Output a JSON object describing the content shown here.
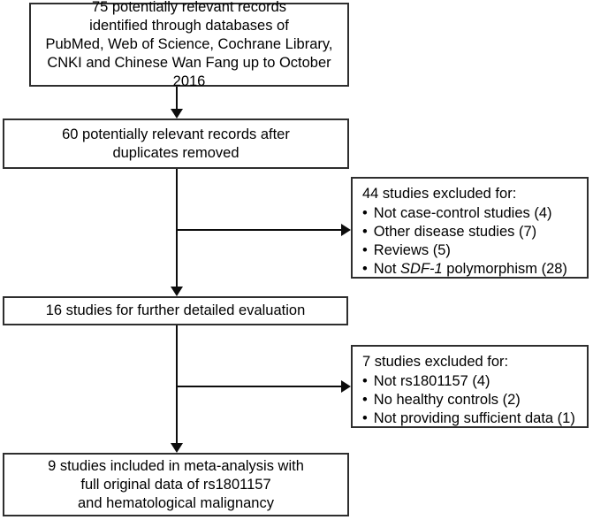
{
  "figure": {
    "boxes": {
      "identified": "75 potentially relevant records\nidentified through databases of\nPubMed, Web of Science, Cochrane Library,\nCNKI and Chinese Wan Fang up to October 2016",
      "deduplicated": "60 potentially relevant records after\nduplicates removed",
      "evaluated": "16 studies for further detailed evaluation",
      "included": "9 studies included in meta-analysis with\nfull original data of rs1801157\nand hematological malignancy"
    },
    "excluded_first": {
      "title": "44 studies excluded for:",
      "bullet": "•",
      "items": [
        "Not case-control studies (4)",
        "Other disease studies (7)",
        "Reviews (5)"
      ],
      "italic_item": {
        "prefix": "Not ",
        "italic": "SDF-1",
        "suffix": " polymorphism (28)"
      }
    },
    "excluded_second": {
      "title": "7 studies excluded for:",
      "bullet": "•",
      "items": [
        "Not rs1801157 (4)",
        "No healthy controls (2)",
        "Not providing sufficient data (1)"
      ]
    }
  },
  "colors": {
    "box_border": "#2e2e2e",
    "arrow": "#0d0d0d",
    "text": "#000000",
    "background": "#ffffff"
  }
}
